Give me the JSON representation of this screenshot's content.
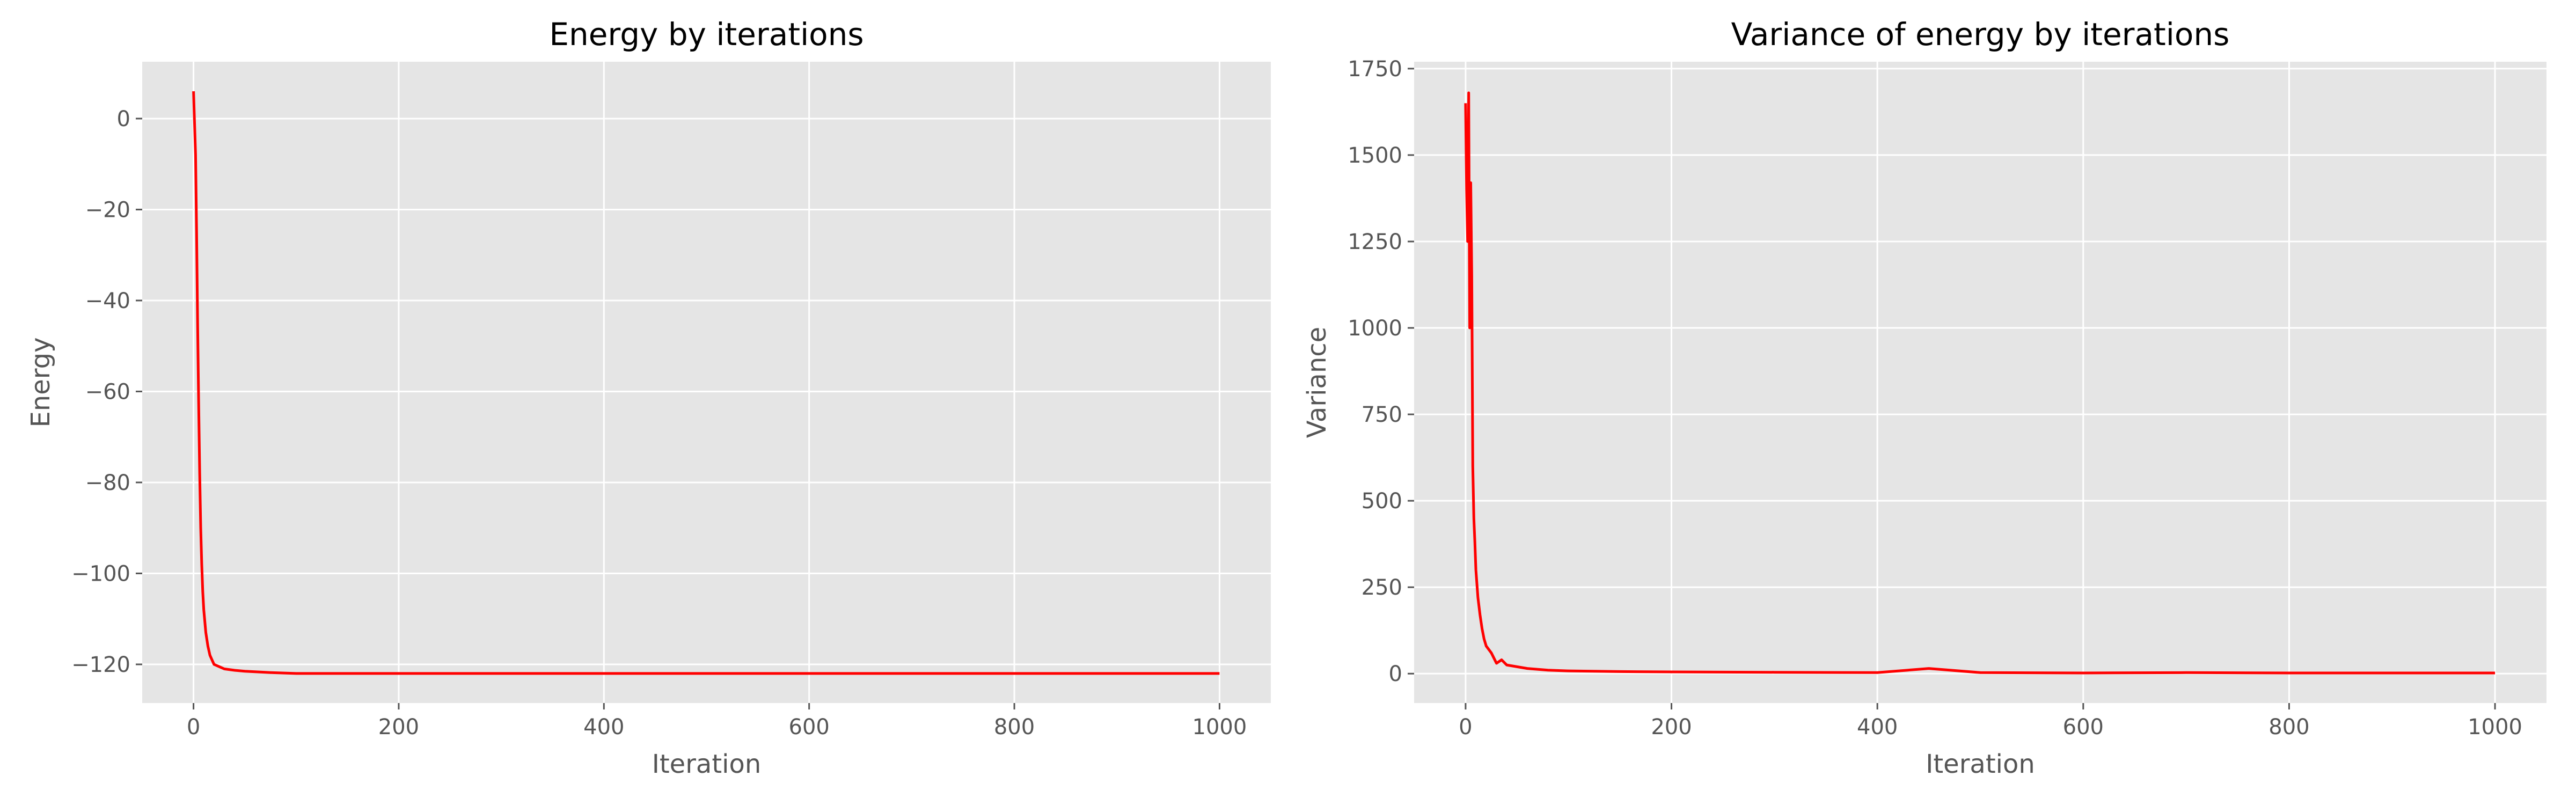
{
  "colors": {
    "plot_background": "#e5e5e5",
    "grid": "#ffffff",
    "line": "#ff0000",
    "tick": "#555555",
    "text": "#555555",
    "title": "#000000"
  },
  "chart_data": [
    {
      "type": "line",
      "title": "Energy by iterations",
      "xlabel": "Iteration",
      "ylabel": "Energy",
      "xlim": [
        -50,
        1050
      ],
      "ylim": [
        -128.5,
        12.5
      ],
      "grid": true,
      "x_ticks": [
        0,
        200,
        400,
        600,
        800,
        1000
      ],
      "y_ticks": [
        0,
        -20,
        -40,
        -60,
        -80,
        -100,
        -120
      ],
      "x_tick_labels": [
        "0",
        "200",
        "400",
        "600",
        "800",
        "1000"
      ],
      "y_tick_labels": [
        "0",
        "−20",
        "−40",
        "−60",
        "−80",
        "−100",
        "−120"
      ],
      "series": [
        {
          "color": "#ff0000",
          "x": [
            0,
            1,
            2,
            3,
            4,
            5,
            6,
            7,
            8,
            9,
            10,
            12,
            14,
            16,
            18,
            20,
            25,
            30,
            40,
            50,
            75,
            100,
            150,
            200,
            300,
            400,
            500,
            600,
            700,
            800,
            900,
            1000
          ],
          "y": [
            6,
            -1,
            -8,
            -25,
            -45,
            -62,
            -78,
            -90,
            -98,
            -104,
            -108,
            -113,
            -116,
            -118,
            -119,
            -120,
            -120.5,
            -121,
            -121.3,
            -121.5,
            -121.8,
            -122,
            -122,
            -122,
            -122,
            -122,
            -122,
            -122,
            -122,
            -122,
            -122,
            -122
          ]
        }
      ]
    },
    {
      "type": "line",
      "title": "Variance of energy by iterations",
      "xlabel": "Iteration",
      "ylabel": "Variance",
      "xlim": [
        -50,
        1050
      ],
      "ylim": [
        -85,
        1770
      ],
      "grid": true,
      "x_ticks": [
        0,
        200,
        400,
        600,
        800,
        1000
      ],
      "y_ticks": [
        0,
        250,
        500,
        750,
        1000,
        1250,
        1500,
        1750
      ],
      "x_tick_labels": [
        "0",
        "200",
        "400",
        "600",
        "800",
        "1000"
      ],
      "y_tick_labels": [
        "0",
        "250",
        "500",
        "750",
        "1000",
        "1250",
        "1500",
        "1750"
      ],
      "series": [
        {
          "color": "#ff0000",
          "x": [
            0,
            1,
            2,
            3,
            4,
            5,
            6,
            7,
            8,
            9,
            10,
            12,
            14,
            16,
            18,
            20,
            25,
            30,
            35,
            40,
            50,
            60,
            80,
            100,
            150,
            200,
            300,
            400,
            450,
            500,
            600,
            700,
            800,
            900,
            1000
          ],
          "y": [
            1650,
            1400,
            1250,
            1680,
            1000,
            1420,
            1150,
            600,
            450,
            380,
            300,
            220,
            170,
            130,
            100,
            80,
            60,
            30,
            40,
            25,
            20,
            15,
            10,
            8,
            6,
            5,
            4,
            3,
            15,
            3,
            2,
            3,
            2,
            2,
            2
          ]
        }
      ]
    }
  ]
}
